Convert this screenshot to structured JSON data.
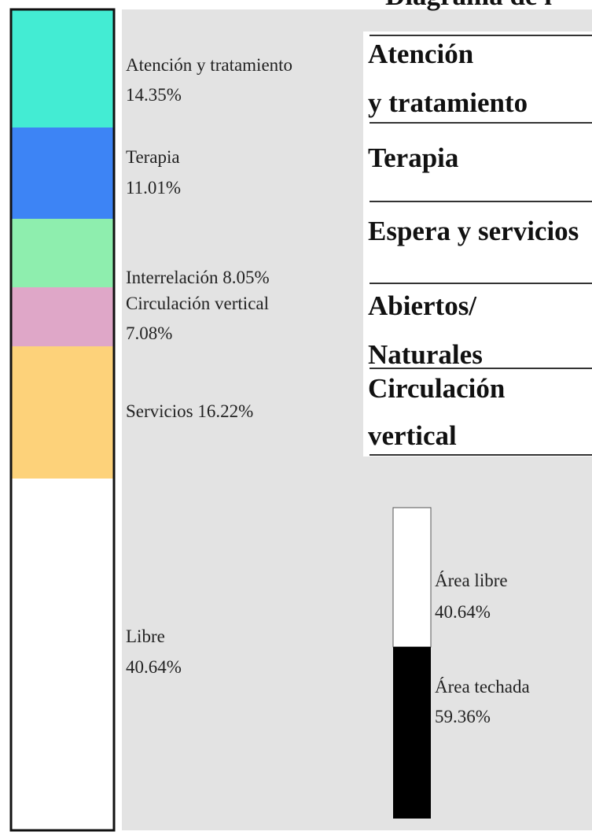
{
  "title": "Diagrama de l",
  "left_labels": [
    {
      "lines": [
        "Atención y tratamiento",
        "14.35%"
      ]
    },
    {
      "lines": [
        "Terapia",
        "11.01%"
      ]
    },
    {
      "lines": [
        "Interrelación 8.05%"
      ]
    },
    {
      "lines": [
        "Circulación vertical",
        "7.08%"
      ]
    },
    {
      "lines": [
        "Servicios 16.22%"
      ]
    },
    {
      "lines": [
        "Libre",
        "40.64%"
      ]
    }
  ],
  "legend_box": [
    {
      "lines": [
        "Atención",
        "y tratamiento"
      ]
    },
    {
      "lines": [
        "Terapia"
      ]
    },
    {
      "lines": [
        "Espera y servicios"
      ]
    },
    {
      "lines": [
        "Abiertos/",
        "Naturales"
      ]
    },
    {
      "lines": [
        "Circulación",
        "vertical"
      ]
    }
  ],
  "area_labels": [
    {
      "lines": [
        "Área libre",
        "40.64%"
      ]
    },
    {
      "lines": [
        "Área techada",
        "59.36%"
      ]
    }
  ]
}
